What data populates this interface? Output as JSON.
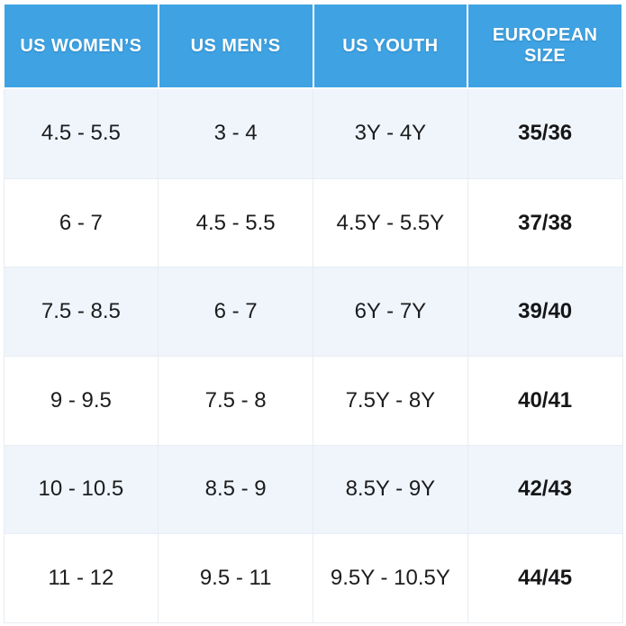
{
  "chart_data": {
    "type": "table",
    "columns": [
      "US WOMEN’S",
      "US MEN’S",
      "US YOUTH",
      "EUROPEAN SIZE"
    ],
    "rows": [
      [
        "4.5 - 5.5",
        "3 - 4",
        "3Y - 4Y",
        "35/36"
      ],
      [
        "6 - 7",
        "4.5 - 5.5",
        "4.5Y - 5.5Y",
        "37/38"
      ],
      [
        "7.5 - 8.5",
        "6 - 7",
        "6Y - 7Y",
        "39/40"
      ],
      [
        "9 - 9.5",
        "7.5 - 8",
        "7.5Y - 8Y",
        "40/41"
      ],
      [
        "10 - 10.5",
        "8.5 - 9",
        "8.5Y - 9Y",
        "42/43"
      ],
      [
        "11 - 12",
        "9.5 - 11",
        "9.5Y - 10.5Y",
        "44/45"
      ]
    ],
    "layout": {
      "grid": true,
      "header_position": "top",
      "row_striping": "odd-rows-tinted"
    }
  },
  "colors": {
    "header_bg": "#3FA3E3",
    "header_text": "#FFFFFF",
    "row_alt_bg": "#EFF5FB",
    "row_bg": "#FFFFFF",
    "body_text": "#1C1C1E",
    "grid_line": "#E7EDF2"
  }
}
